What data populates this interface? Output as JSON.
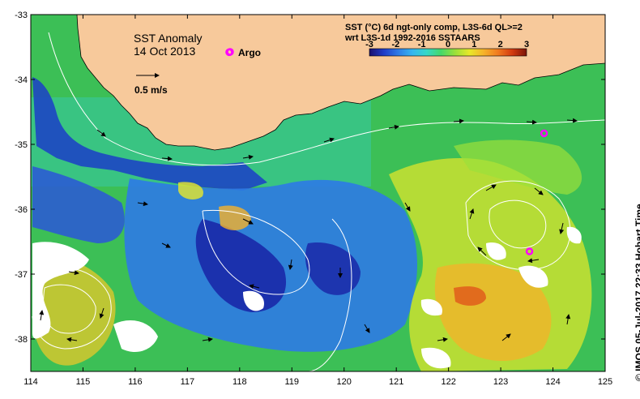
{
  "map": {
    "title": "SST Anomaly",
    "date": "14 Oct 2013",
    "product_line1": "SST (°C) 6d ngt-only comp, L3S-6d QL>=2",
    "product_line2": "wrt L3S-1d 1992-2016 SSTAARS",
    "scale_arrow_label": "0.5 m/s",
    "argo_label": "Argo",
    "credit": "©  IMOS 05-Jul-2017 22:33 Hobart Time"
  },
  "axes": {
    "lon_min": 114,
    "lon_max": 125,
    "lat_min": -38.5,
    "lat_max": -33,
    "x_ticks": [
      "114",
      "115",
      "116",
      "117",
      "118",
      "119",
      "120",
      "121",
      "122",
      "123",
      "124",
      "125"
    ],
    "y_ticks": [
      "-33",
      "-34",
      "-35",
      "-36",
      "-37",
      "-38"
    ]
  },
  "colorbar": {
    "min": -3,
    "max": 3,
    "ticks": [
      "-3",
      "-2",
      "-1",
      "0",
      "1",
      "2",
      "3"
    ],
    "colors": [
      "#1a0f6e",
      "#1f3cc8",
      "#2e7ae6",
      "#35b6f0",
      "#35d8c8",
      "#45d86a",
      "#9be03a",
      "#e8e82a",
      "#f6b22a",
      "#f07a20",
      "#d23a10",
      "#7a1408"
    ]
  },
  "colors": {
    "land": "#f7c99b",
    "ocean_base": "#3cbf56",
    "argo_marker": "#ff00ff",
    "contour": "#ffffff",
    "vector": "#000000"
  },
  "argo_floats": [
    {
      "lon": 117.8,
      "lat": -33.58
    },
    {
      "lon": 123.83,
      "lat": -34.83
    },
    {
      "lon": 123.55,
      "lat": -36.65
    }
  ]
}
